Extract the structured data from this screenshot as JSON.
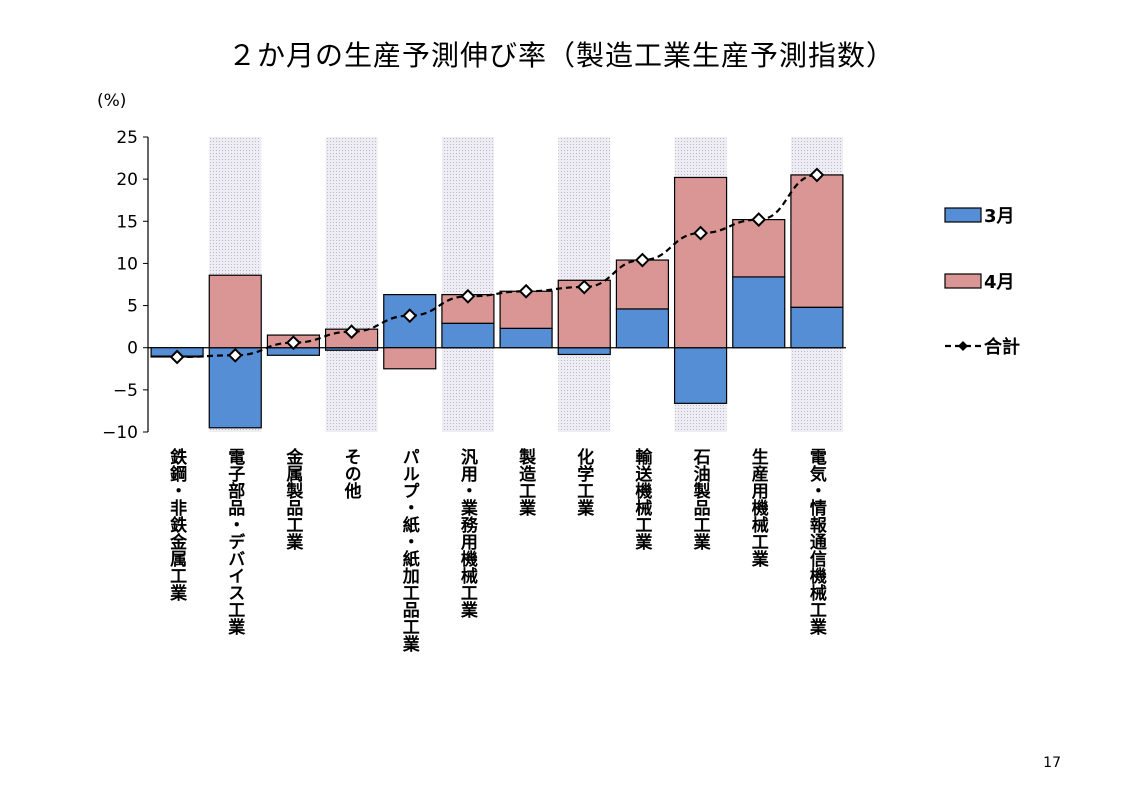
{
  "page": {
    "title": "２か月の生産予測伸び率（製造工業生産予測指数）",
    "unit": "(%)",
    "page_number": "17"
  },
  "colors": {
    "march": "#558ed5",
    "april": "#d99694",
    "total_line": "#000000",
    "shade": "#d9d9e6"
  },
  "chart_data": {
    "type": "bar",
    "title": "２か月の生産予測伸び率（製造工業生産予測指数）",
    "ylabel": "(%)",
    "ylim": [
      -10,
      25
    ],
    "yticks": [
      "25",
      "20",
      "15",
      "10",
      "5",
      "0",
      "−5",
      "−10"
    ],
    "ytick_values": [
      25,
      20,
      15,
      10,
      5,
      0,
      -5,
      -10
    ],
    "legend_position": "right",
    "categories": [
      "鉄鋼・非鉄金属工業",
      "電子部品・デバイス工業",
      "金属製品工業",
      "その他",
      "パルプ・紙・紙加工品工業",
      "汎用・業務用機械工業",
      "製造工業",
      "化学工業",
      "輸送機械工業",
      "石油製品工業",
      "生産用機械工業",
      "電気・情報通信機械工業"
    ],
    "shaded_categories": [
      1,
      3,
      5,
      7,
      9,
      11
    ],
    "series": [
      {
        "name": "3月",
        "type": "stacked-bar",
        "values": [
          -1.0,
          -9.5,
          -0.9,
          -0.3,
          6.3,
          2.9,
          2.3,
          -0.8,
          4.6,
          -6.6,
          8.4,
          4.8
        ]
      },
      {
        "name": "4月",
        "type": "stacked-bar",
        "values": [
          -0.1,
          8.6,
          1.5,
          2.2,
          -2.5,
          3.4,
          4.4,
          8.0,
          5.8,
          20.2,
          6.8,
          15.7
        ]
      },
      {
        "name": "合計",
        "type": "line",
        "values": [
          -1.1,
          -0.9,
          0.6,
          1.9,
          3.8,
          6.1,
          6.7,
          7.2,
          10.4,
          13.6,
          15.2,
          20.5
        ]
      }
    ]
  }
}
